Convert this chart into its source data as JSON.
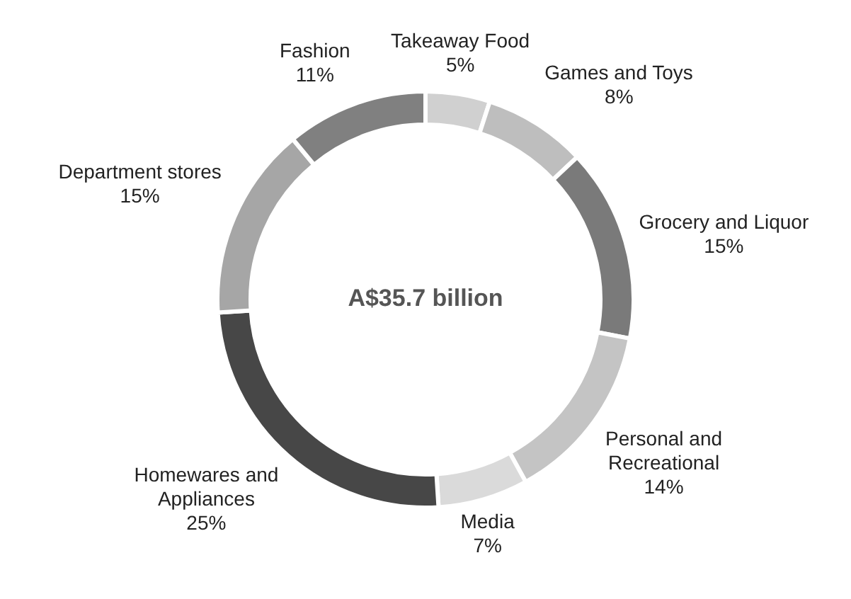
{
  "chart_data": {
    "type": "donut",
    "categories": [
      "Takeaway Food",
      "Games and Toys",
      "Grocery and Liquor",
      "Personal and Recreational",
      "Media",
      "Homewares and Appliances",
      "Department stores",
      "Fashion"
    ],
    "values": [
      5,
      8,
      15,
      14,
      7,
      25,
      15,
      11
    ],
    "value_labels": [
      "5%",
      "8%",
      "15%",
      "14%",
      "7%",
      "25%",
      "15%",
      "11%"
    ],
    "colors": [
      "#d0d0d0",
      "#bebebe",
      "#7a7a7a",
      "#c4c4c4",
      "#dadada",
      "#474747",
      "#a6a6a6",
      "#808080"
    ],
    "annotations": [
      "A$35.7 billion"
    ],
    "legend": false
  }
}
